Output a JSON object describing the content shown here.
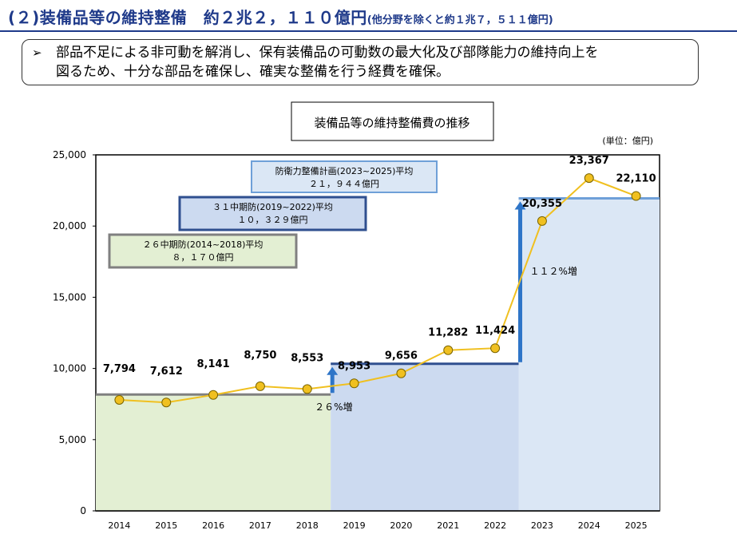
{
  "header": {
    "title": "(２)装備品等の維持整備　約２兆２，１１０億円",
    "subtitle": "(他分野を除くと約１兆７，５１１億円)"
  },
  "summary": {
    "bullet": "➢",
    "line1": "部品不足による非可動を解消し、保有装備品の可動数の最大化及び部隊能力の維持向上を",
    "line2": "図るため、十分な部品を確保し、確実な整備を行う経費を確保。"
  },
  "chart_data": {
    "type": "line",
    "title": "装備品等の維持整備費の推移",
    "unit_label": "(単位：億円)",
    "x": [
      "2014",
      "2015",
      "2016",
      "2017",
      "2018",
      "2019",
      "2020",
      "2021",
      "2022",
      "2023",
      "2024",
      "2025"
    ],
    "series": [
      {
        "values": [
          7794,
          7612,
          8141,
          8750,
          8553,
          8953,
          9656,
          11282,
          11424,
          20355,
          23367,
          22110
        ]
      }
    ],
    "data_labels": [
      "7,794",
      "7,612",
      "8,141",
      "8,750",
      "8,553",
      "8,953",
      "9,656",
      "11,282",
      "11,424",
      "20,355",
      "23,367",
      "22,110"
    ],
    "ylim": [
      0,
      25000
    ],
    "yticks": [
      0,
      5000,
      10000,
      15000,
      20000,
      25000
    ],
    "ytick_labels": [
      "0",
      "5,000",
      "10,000",
      "15,000",
      "20,000",
      "25,000"
    ],
    "grid": false,
    "periods": [
      {
        "label_line1": "２６中期防(2014~2018)平均",
        "label_line2": "８，１７０億円",
        "average": 8170,
        "start": "2014",
        "end": "2018",
        "fill": "#e3efd3",
        "border": "#808080"
      },
      {
        "label_line1": "３１中期防(2019~2022)平均",
        "label_line2": "１０，３２９億円",
        "average": 10329,
        "start": "2019",
        "end": "2022",
        "fill": "#ccdaf0",
        "border": "#2f4f8f"
      },
      {
        "label_line1": "防衛力整備計画(2023~2025)平均",
        "label_line2": "２１，９４４億円",
        "average": 21944,
        "start": "2023",
        "end": "2025",
        "fill": "#dbe7f5",
        "border": "#6fa0d8"
      }
    ],
    "increases": [
      {
        "label": "２６%増",
        "from_period": 0,
        "to_period": 1
      },
      {
        "label": "１１２%増",
        "from_period": 1,
        "to_period": 2
      }
    ],
    "colors": {
      "line": "#f0c020",
      "marker_fill": "#f0c020",
      "marker_stroke": "#7a6400",
      "arrow": "#2e75c8",
      "axis": "#000000"
    }
  }
}
